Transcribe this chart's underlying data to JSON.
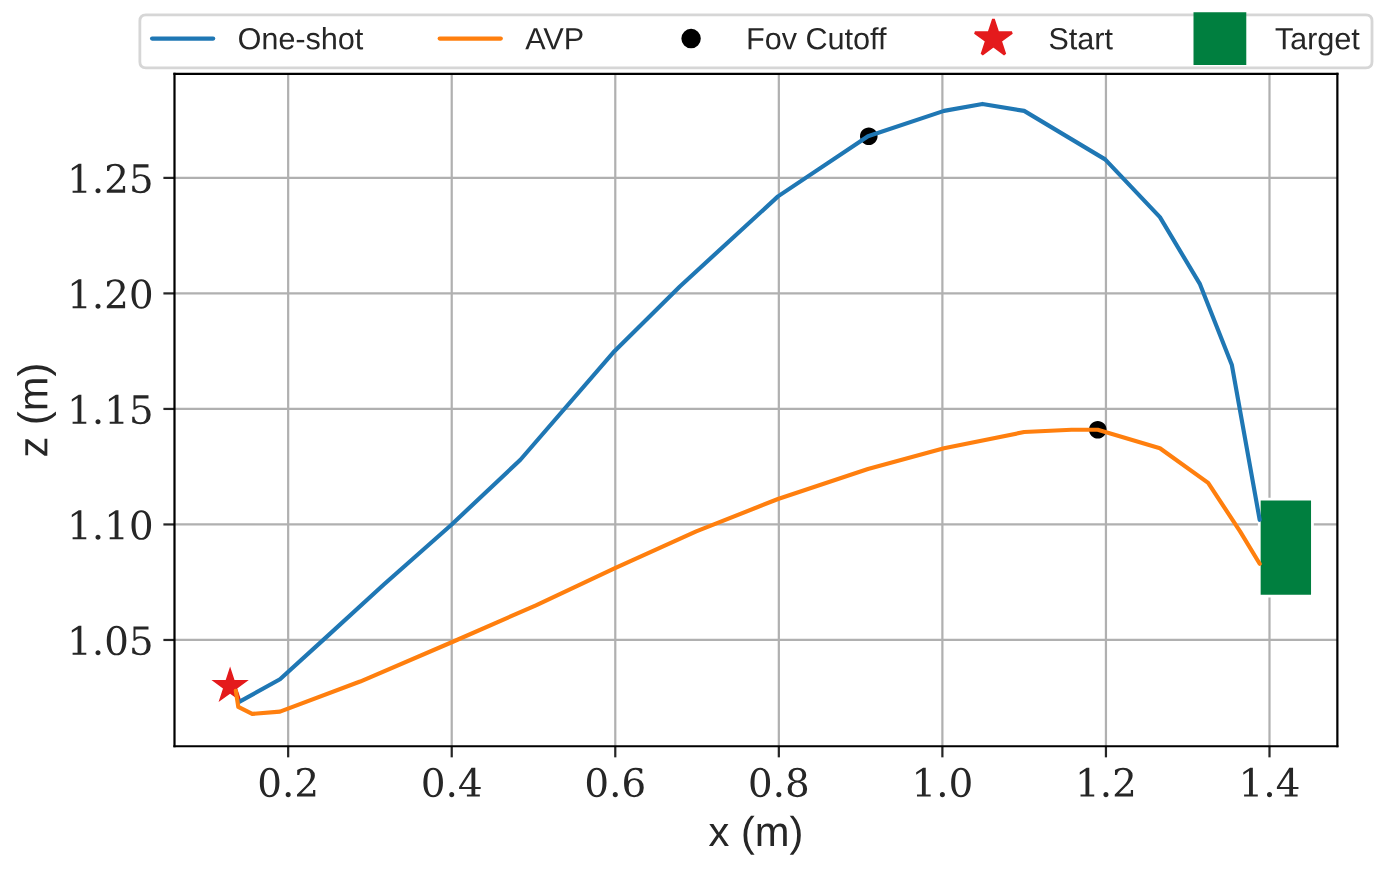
{
  "chart_data": {
    "type": "line",
    "xlabel": "x (m)",
    "ylabel": "z (m)",
    "xlim": [
      0.061,
      1.483
    ],
    "ylim": [
      1.004,
      1.295
    ],
    "xticks": [
      {
        "value": 0.2,
        "label": "0.2"
      },
      {
        "value": 0.4,
        "label": "0.4"
      },
      {
        "value": 0.6,
        "label": "0.6"
      },
      {
        "value": 0.8,
        "label": "0.8"
      },
      {
        "value": 1.0,
        "label": "1.0"
      },
      {
        "value": 1.2,
        "label": "1.2"
      },
      {
        "value": 1.4,
        "label": "1.4"
      }
    ],
    "yticks": [
      {
        "value": 1.05,
        "label": "1.05"
      },
      {
        "value": 1.1,
        "label": "1.10"
      },
      {
        "value": 1.15,
        "label": "1.15"
      },
      {
        "value": 1.2,
        "label": "1.20"
      },
      {
        "value": 1.25,
        "label": "1.25"
      }
    ],
    "grid": true,
    "legend": "top",
    "series": [
      {
        "name": "One-shot",
        "color": "#1f77b4",
        "x": [
          0.139,
          0.19,
          0.249,
          0.317,
          0.4,
          0.484,
          0.599,
          0.679,
          0.799,
          0.909,
          1.002,
          1.049,
          1.1,
          1.199,
          1.266,
          1.315,
          1.354,
          1.388
        ],
        "values": [
          1.023,
          1.033,
          1.052,
          1.074,
          1.1,
          1.128,
          1.175,
          1.203,
          1.242,
          1.268,
          1.279,
          1.282,
          1.279,
          1.258,
          1.233,
          1.204,
          1.169,
          1.102
        ]
      },
      {
        "name": "AVP",
        "color": "#ff7f0e",
        "x": [
          0.136,
          0.139,
          0.156,
          0.19,
          0.288,
          0.4,
          0.503,
          0.599,
          0.699,
          0.799,
          0.909,
          1.002,
          1.1,
          1.158,
          1.19,
          1.266,
          1.325,
          1.364,
          1.388
        ],
        "values": [
          1.028,
          1.021,
          1.018,
          1.019,
          1.032,
          1.049,
          1.065,
          1.081,
          1.097,
          1.111,
          1.124,
          1.133,
          1.14,
          1.141,
          1.141,
          1.133,
          1.118,
          1.097,
          1.083
        ]
      },
      {
        "name": "Fov Cutoff",
        "type": "scatter",
        "marker": "circle",
        "color": "#000000",
        "x": [
          0.91,
          1.19
        ],
        "values": [
          1.268,
          1.141
        ]
      },
      {
        "name": "Start",
        "type": "scatter",
        "marker": "star",
        "color": "#e41a1c",
        "x": [
          0.129
        ],
        "values": [
          1.03
        ]
      },
      {
        "name": "Target",
        "type": "bar",
        "marker": "square",
        "color": "#007f3f",
        "x": [
          1.42
        ],
        "base": [
          1.069
        ],
        "values": [
          0.042
        ]
      }
    ]
  }
}
